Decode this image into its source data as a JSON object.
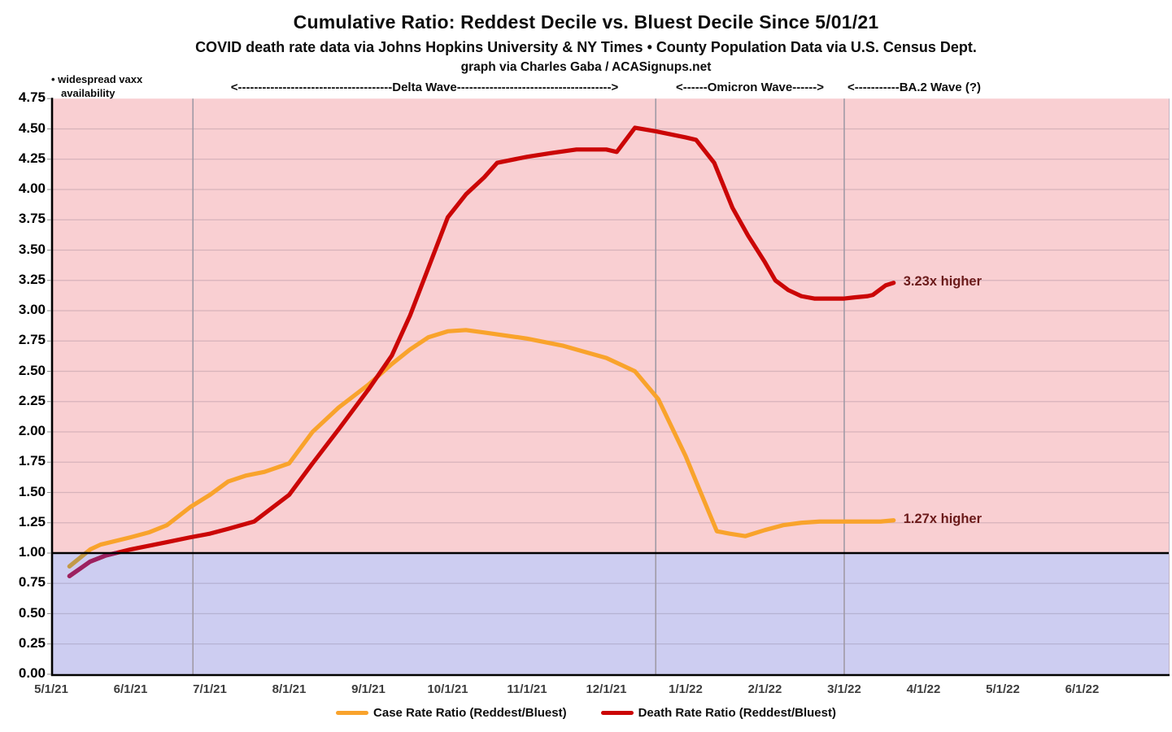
{
  "header": {
    "title": "Cumulative Ratio: Reddest Decile vs. Bluest Decile Since 5/01/21",
    "subtitle": "COVID death rate data via Johns Hopkins University & NY Times • County Population Data via U.S. Census Dept.",
    "credit": "graph via Charles Gaba / ACASignups.net"
  },
  "annotations": {
    "vaxx_note_line1": "• widespread vaxx",
    "vaxx_note_line2": "availability",
    "delta_wave": "<--------------------------------------Delta Wave-------------------------------------->",
    "omicron_wave": "<------Omicron Wave------>",
    "ba2_wave": "<-----------BA.2 Wave (?)",
    "death_end_label": "3.23x higher",
    "case_end_label": "1.27x higher",
    "end_label_color": "#6b1a1a"
  },
  "legend": [
    {
      "label": "Case Rate Ratio (Reddest/Bluest)",
      "color": "#f9a32c"
    },
    {
      "label": "Death Rate Ratio (Reddest/Bluest)",
      "color": "#cb0606"
    }
  ],
  "chart_data": {
    "type": "line",
    "title": "Cumulative Ratio: Reddest Decile vs. Bluest Decile Since 5/01/21",
    "xlabel": "",
    "ylabel": "",
    "ylim": [
      0,
      4.75
    ],
    "y_tick_step": 0.25,
    "grid": true,
    "legend_position": "bottom",
    "x_ticks": [
      "5/1/21",
      "6/1/21",
      "7/1/21",
      "8/1/21",
      "9/1/21",
      "10/1/21",
      "11/1/21",
      "12/1/21",
      "1/1/22",
      "2/1/22",
      "3/1/22",
      "4/1/22",
      "5/1/22",
      "6/1/22"
    ],
    "y_ticks": [
      "0.00",
      "0.25",
      "0.50",
      "0.75",
      "1.00",
      "1.25",
      "1.50",
      "1.75",
      "2.00",
      "2.25",
      "2.50",
      "2.75",
      "3.00",
      "3.25",
      "3.50",
      "3.75",
      "4.00",
      "4.25",
      "4.50",
      "4.75"
    ],
    "reference_line_y": 1.0,
    "region_colors": {
      "above_one": "#f9cfd2",
      "below_one": "#cdcdf1"
    },
    "wave_boundaries": [
      "6/25/21",
      "12/20/21",
      "3/1/22"
    ],
    "series": [
      {
        "name": "Case Rate Ratio (Reddest/Bluest)",
        "color": "#f9a32c",
        "muted_color": "#c29a49",
        "end_value_label": "1.27x higher",
        "points": [
          [
            "5/8/21",
            0.89
          ],
          [
            "5/12/21",
            0.96
          ],
          [
            "5/16/21",
            1.03
          ],
          [
            "5/20/21",
            1.07
          ],
          [
            "6/1/21",
            1.13
          ],
          [
            "6/8/21",
            1.17
          ],
          [
            "6/15/21",
            1.23
          ],
          [
            "6/24/21",
            1.38
          ],
          [
            "7/1/21",
            1.48
          ],
          [
            "7/8/21",
            1.59
          ],
          [
            "7/15/21",
            1.64
          ],
          [
            "7/22/21",
            1.67
          ],
          [
            "8/1/21",
            1.74
          ],
          [
            "8/10/21",
            2.0
          ],
          [
            "8/20/21",
            2.2
          ],
          [
            "9/1/21",
            2.39
          ],
          [
            "9/10/21",
            2.56
          ],
          [
            "9/17/21",
            2.68
          ],
          [
            "9/24/21",
            2.78
          ],
          [
            "10/1/21",
            2.83
          ],
          [
            "10/8/21",
            2.84
          ],
          [
            "10/15/21",
            2.82
          ],
          [
            "11/1/21",
            2.77
          ],
          [
            "11/15/21",
            2.71
          ],
          [
            "12/1/21",
            2.61
          ],
          [
            "12/12/21",
            2.5
          ],
          [
            "12/21/21",
            2.27
          ],
          [
            "1/1/22",
            1.8
          ],
          [
            "1/6/22",
            1.54
          ],
          [
            "1/13/22",
            1.18
          ],
          [
            "1/18/22",
            1.16
          ],
          [
            "1/24/22",
            1.14
          ],
          [
            "2/1/22",
            1.19
          ],
          [
            "2/8/22",
            1.23
          ],
          [
            "2/15/22",
            1.25
          ],
          [
            "2/22/22",
            1.26
          ],
          [
            "3/1/22",
            1.26
          ],
          [
            "3/8/22",
            1.26
          ],
          [
            "3/15/22",
            1.26
          ],
          [
            "3/20/22",
            1.27
          ]
        ]
      },
      {
        "name": "Death Rate Ratio (Reddest/Bluest)",
        "color": "#cb0606",
        "muted_color": "#9c2161",
        "end_value_label": "3.23x higher",
        "points": [
          [
            "5/8/21",
            0.81
          ],
          [
            "5/12/21",
            0.87
          ],
          [
            "5/16/21",
            0.93
          ],
          [
            "5/22/21",
            0.98
          ],
          [
            "6/1/21",
            1.03
          ],
          [
            "6/8/21",
            1.06
          ],
          [
            "6/15/21",
            1.09
          ],
          [
            "6/24/21",
            1.13
          ],
          [
            "7/1/21",
            1.16
          ],
          [
            "7/8/21",
            1.2
          ],
          [
            "7/18/21",
            1.26
          ],
          [
            "8/1/21",
            1.48
          ],
          [
            "8/10/21",
            1.74
          ],
          [
            "8/20/21",
            2.02
          ],
          [
            "9/1/21",
            2.35
          ],
          [
            "9/10/21",
            2.63
          ],
          [
            "9/17/21",
            2.96
          ],
          [
            "9/24/21",
            3.35
          ],
          [
            "10/1/21",
            3.77
          ],
          [
            "10/8/21",
            3.96
          ],
          [
            "10/15/21",
            4.1
          ],
          [
            "10/20/21",
            4.22
          ],
          [
            "11/1/21",
            4.27
          ],
          [
            "11/10/21",
            4.3
          ],
          [
            "11/20/21",
            4.33
          ],
          [
            "12/1/21",
            4.33
          ],
          [
            "12/5/21",
            4.31
          ],
          [
            "12/12/21",
            4.51
          ],
          [
            "12/20/21",
            4.48
          ],
          [
            "1/1/22",
            4.43
          ],
          [
            "1/5/22",
            4.41
          ],
          [
            "1/12/22",
            4.22
          ],
          [
            "1/19/22",
            3.85
          ],
          [
            "1/25/22",
            3.62
          ],
          [
            "2/1/22",
            3.4
          ],
          [
            "2/5/22",
            3.25
          ],
          [
            "2/10/22",
            3.17
          ],
          [
            "2/15/22",
            3.12
          ],
          [
            "2/20/22",
            3.1
          ],
          [
            "3/1/22",
            3.1
          ],
          [
            "3/5/22",
            3.11
          ],
          [
            "3/10/22",
            3.12
          ],
          [
            "3/12/22",
            3.13
          ],
          [
            "3/17/22",
            3.21
          ],
          [
            "3/20/22",
            3.23
          ]
        ]
      }
    ]
  }
}
